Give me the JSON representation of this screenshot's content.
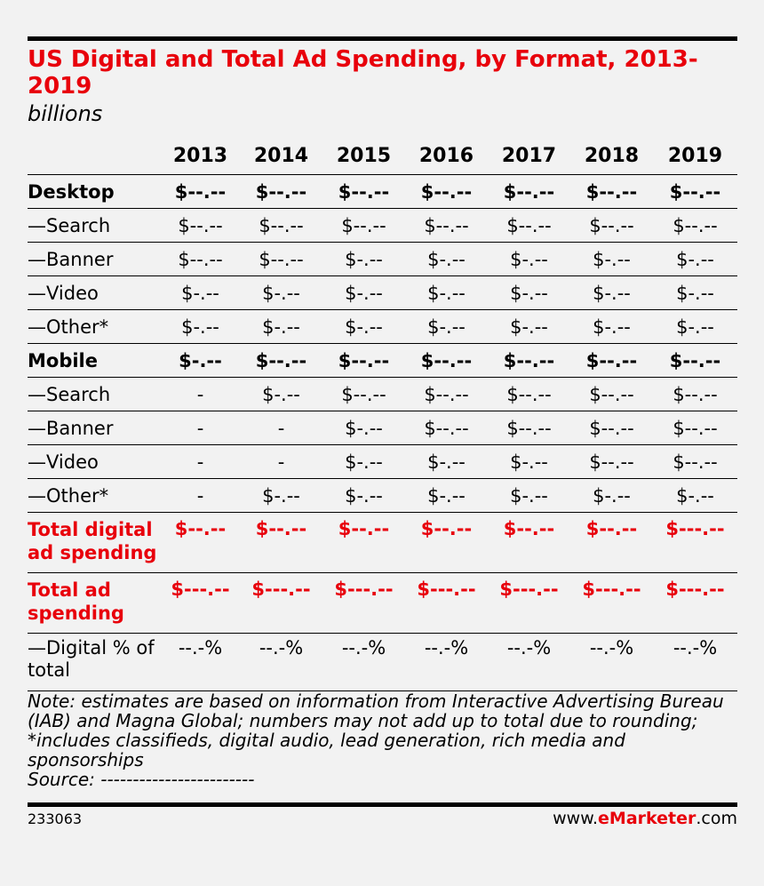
{
  "chart_data": {
    "type": "table",
    "title": "US Digital and Total Ad Spending, by Format, 2013-2019",
    "subtitle": "billions",
    "columns": [
      "2013",
      "2014",
      "2015",
      "2016",
      "2017",
      "2018",
      "2019"
    ],
    "rows": [
      {
        "label": "Desktop",
        "style": "bold",
        "values": [
          "$--.--",
          "$--.--",
          "$--.--",
          "$--.--",
          "$--.--",
          "$--.--",
          "$--.--"
        ]
      },
      {
        "label": "—Search",
        "style": "normal",
        "values": [
          "$--.--",
          "$--.--",
          "$--.--",
          "$--.--",
          "$--.--",
          "$--.--",
          "$--.--"
        ]
      },
      {
        "label": "—Banner",
        "style": "normal",
        "values": [
          "$--.--",
          "$--.--",
          "$-.--",
          "$-.--",
          "$-.--",
          "$-.--",
          "$-.--"
        ]
      },
      {
        "label": "—Video",
        "style": "normal",
        "values": [
          "$-.--",
          "$-.--",
          "$-.--",
          "$-.--",
          "$-.--",
          "$-.--",
          "$-.--"
        ]
      },
      {
        "label": "—Other*",
        "style": "normal",
        "values": [
          "$-.--",
          "$-.--",
          "$-.--",
          "$-.--",
          "$-.--",
          "$-.--",
          "$-.--"
        ]
      },
      {
        "label": "Mobile",
        "style": "bold",
        "values": [
          "$-.--",
          "$--.--",
          "$--.--",
          "$--.--",
          "$--.--",
          "$--.--",
          "$--.--"
        ]
      },
      {
        "label": "—Search",
        "style": "normal",
        "values": [
          "-",
          "$-.--",
          "$--.--",
          "$--.--",
          "$--.--",
          "$--.--",
          "$--.--"
        ]
      },
      {
        "label": "—Banner",
        "style": "normal",
        "values": [
          "-",
          "-",
          "$-.--",
          "$--.--",
          "$--.--",
          "$--.--",
          "$--.--"
        ]
      },
      {
        "label": "—Video",
        "style": "normal",
        "values": [
          "-",
          "-",
          "$-.--",
          "$-.--",
          "$-.--",
          "$--.--",
          "$--.--"
        ]
      },
      {
        "label": "—Other*",
        "style": "normal",
        "values": [
          "-",
          "$-.--",
          "$-.--",
          "$-.--",
          "$-.--",
          "$-.--",
          "$-.--"
        ]
      },
      {
        "label": "Total digital ad spending",
        "style": "red",
        "values": [
          "$--.--",
          "$--.--",
          "$--.--",
          "$--.--",
          "$--.--",
          "$--.--",
          "$---.--"
        ]
      },
      {
        "label": "Total ad spending",
        "style": "red",
        "values": [
          "$---.--",
          "$---.--",
          "$---.--",
          "$---.--",
          "$---.--",
          "$---.--",
          "$---.--"
        ]
      },
      {
        "label": "—Digital % of total",
        "style": "pct",
        "values": [
          "--.-%",
          "--.-%",
          "--.-%",
          "--.-%",
          "--.-%",
          "--.-%",
          "--.-%"
        ]
      }
    ],
    "note": "Note: estimates are based on information from Interactive Advertising Bureau (IAB) and Magna Global; numbers may not add up to total due to rounding; *includes classifieds, digital audio, lead generation, rich media and sponsorships",
    "source": "Source: ------------------------"
  },
  "footer": {
    "chart_id": "233063",
    "brand_prefix": "www.",
    "brand_bold": "eMarketer",
    "brand_suffix": ".com"
  },
  "colors": {
    "accent": "#e8000b",
    "background": "#f2f2f2"
  }
}
